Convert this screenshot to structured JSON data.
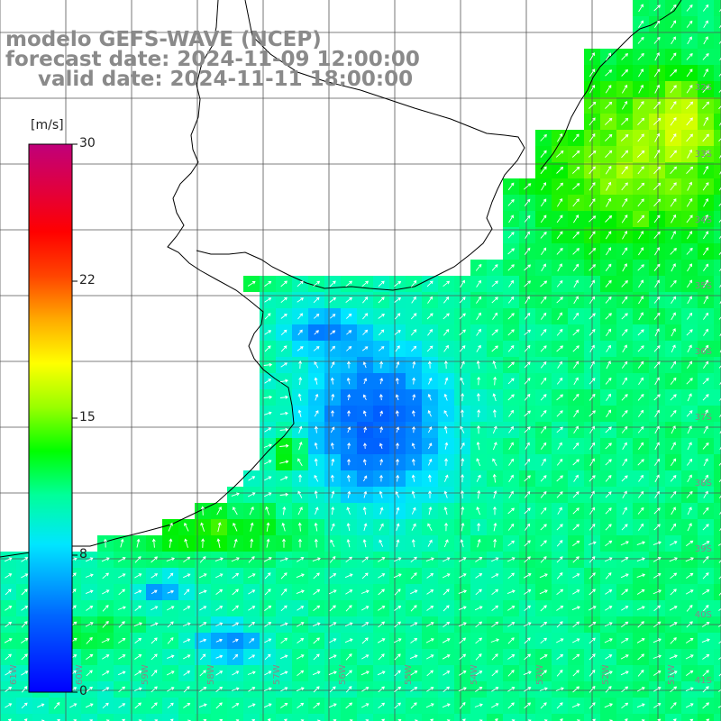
{
  "title": {
    "line1": "modelo GEFS-WAVE (NCEP)",
    "line2": "forecast date: 2024-11-09 12:00:00",
    "line3": "valid date: 2024-11-11 18:00:00"
  },
  "colorbar": {
    "unit": "[m/s]",
    "ticks": [
      "30",
      "22",
      "15",
      "8",
      "0"
    ],
    "range": [
      0,
      30
    ]
  },
  "lat_labels": [
    "32S",
    "33S",
    "34S",
    "35S",
    "36S",
    "37S",
    "38S",
    "39S",
    "40S",
    "41S"
  ],
  "lon_labels": [
    "61W",
    "60W",
    "59W",
    "58W",
    "57W",
    "56W",
    "55W",
    "54W",
    "53W",
    "52W",
    "51W"
  ],
  "colors": {
    "land": "#ffffff",
    "grid": "#555555",
    "coast": "#000000",
    "arrow": "#ffffff",
    "title": "#8a8a8a"
  }
}
